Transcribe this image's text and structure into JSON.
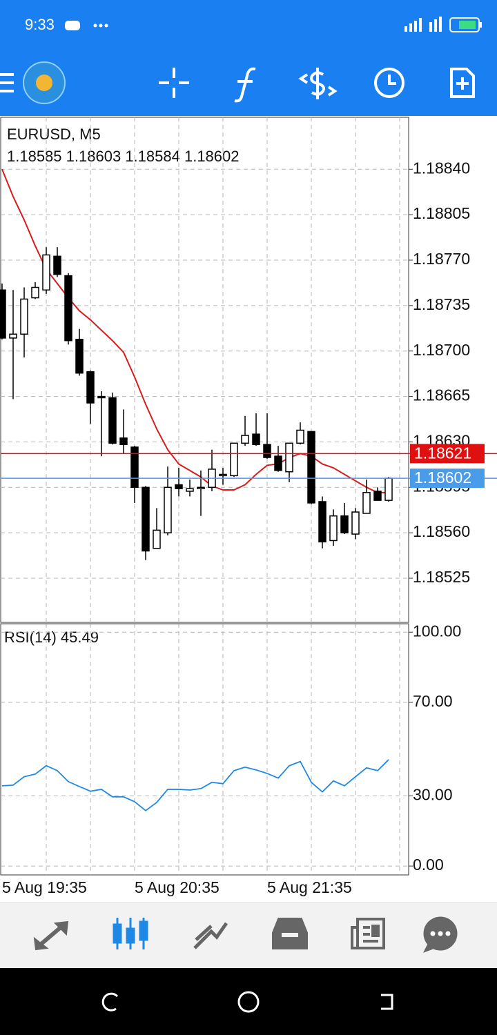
{
  "status_bar": {
    "time": "9:33"
  },
  "chart_data": [
    {
      "type": "candlestick",
      "title": "EURUSD, M5",
      "categories": [
        "5 Aug 19:35",
        null,
        null,
        null,
        null,
        null,
        null,
        null,
        null,
        null,
        null,
        null,
        "5 Aug 20:35",
        null,
        null,
        null,
        null,
        null,
        null,
        null,
        null,
        null,
        null,
        null,
        "5 Aug 21:35",
        null,
        null,
        null,
        null,
        null,
        null,
        null,
        null,
        null,
        null,
        null
      ],
      "open": [
        1.18747,
        1.1871,
        1.18713,
        1.18741,
        1.18747,
        1.18773,
        1.18758,
        1.18709,
        1.18684,
        1.18665,
        1.18664,
        1.18633,
        1.18626,
        1.18595,
        1.18548,
        1.1856,
        1.18597,
        1.18592,
        1.18594,
        1.18595,
        1.18604,
        1.18604,
        1.18629,
        1.18636,
        1.18628,
        1.18619,
        1.18607,
        1.18629,
        1.18638,
        1.18584,
        1.18554,
        1.18573,
        1.18559,
        1.18575,
        1.18592,
        1.18585
      ],
      "high": [
        1.18752,
        1.18747,
        1.18749,
        1.18753,
        1.1878,
        1.1878,
        1.1876,
        1.18717,
        1.18685,
        1.18669,
        1.18668,
        1.18655,
        1.18627,
        1.18596,
        1.18579,
        1.18611,
        1.1861,
        1.18601,
        1.18608,
        1.18624,
        1.1861,
        1.18629,
        1.1865,
        1.18652,
        1.18652,
        1.18627,
        1.18629,
        1.18645,
        1.18638,
        1.18588,
        1.18578,
        1.18583,
        1.18579,
        1.18601,
        1.18595,
        1.18603
      ],
      "low": [
        1.18709,
        1.18663,
        1.18695,
        1.1874,
        1.18744,
        1.18757,
        1.18705,
        1.18681,
        1.18644,
        1.18619,
        1.18628,
        1.18621,
        1.18583,
        1.18539,
        1.18548,
        1.18558,
        1.18588,
        1.18588,
        1.18573,
        1.18592,
        1.18597,
        1.18603,
        1.18627,
        1.18627,
        1.18617,
        1.18607,
        1.18599,
        1.18628,
        1.18582,
        1.18548,
        1.1855,
        1.18559,
        1.18555,
        1.18575,
        1.18585,
        1.18584
      ],
      "close": [
        1.1871,
        1.18713,
        1.1874,
        1.18749,
        1.18774,
        1.18759,
        1.18708,
        1.18683,
        1.1866,
        1.18664,
        1.18629,
        1.18628,
        1.18595,
        1.18546,
        1.18562,
        1.18595,
        1.18594,
        1.18594,
        1.18595,
        1.18609,
        1.18605,
        1.18629,
        1.18635,
        1.18628,
        1.18618,
        1.18608,
        1.18629,
        1.18639,
        1.18583,
        1.18553,
        1.18573,
        1.1856,
        1.18576,
        1.18591,
        1.18585,
        1.18602
      ],
      "lines": [
        {
          "color": "#d81b1b",
          "values": [
            1.1884,
            1.18819,
            1.18801,
            1.18781,
            1.18763,
            1.18752,
            1.18741,
            1.18731,
            1.18724,
            1.18716,
            1.18708,
            1.18699,
            1.1868,
            1.18659,
            1.1864,
            1.18624,
            1.18613,
            1.18608,
            1.18603,
            1.18596,
            1.18593,
            1.18593,
            1.18597,
            1.18605,
            1.18612,
            1.18613,
            1.18618,
            1.18621,
            1.18619,
            1.18613,
            1.1861,
            1.18605,
            1.186,
            1.18595,
            1.18591,
            1.18591
          ]
        }
      ],
      "levels": [
        {
          "value": 1.18621,
          "color": "#e01010"
        },
        {
          "value": 1.18602,
          "color": "#4a9be8"
        }
      ],
      "ylim": [
        1.18491,
        1.1888
      ],
      "yticks": [
        {
          "value": 1.1884,
          "label": "1.18840"
        },
        {
          "value": 1.18805,
          "label": "1.18805"
        },
        {
          "value": 1.1877,
          "label": "1.18770"
        },
        {
          "value": 1.18735,
          "label": "1.18735"
        },
        {
          "value": 1.187,
          "label": "1.18700"
        },
        {
          "value": 1.18665,
          "label": "1.18665"
        },
        {
          "value": 1.1863,
          "label": "1.18630"
        },
        {
          "value": 1.18595,
          "label": "1.18595"
        },
        {
          "value": 1.1856,
          "label": "1.18560"
        },
        {
          "value": 1.18525,
          "label": "1.18525"
        }
      ],
      "grid": true
    },
    {
      "type": "line",
      "title": "RSI(14)",
      "color": "#1e88e5",
      "values": [
        34.3,
        34.6,
        38.2,
        39.3,
        42.9,
        40.8,
        36.1,
        34.0,
        32.0,
        32.8,
        29.6,
        29.6,
        27.5,
        23.7,
        27.2,
        32.8,
        32.8,
        32.5,
        33.1,
        35.8,
        35.2,
        40.8,
        42.3,
        41.1,
        39.6,
        37.6,
        42.9,
        44.7,
        35.8,
        31.7,
        36.4,
        34.3,
        38.2,
        42.0,
        40.8,
        45.49
      ],
      "ylim": [
        -3.8,
        103.6
      ],
      "yticks": [
        {
          "value": 100,
          "label": "100.00"
        },
        {
          "value": 70,
          "label": "70.00"
        },
        {
          "value": 30,
          "label": "30.00"
        },
        {
          "value": 0,
          "label": "0.00"
        }
      ],
      "grid": true
    }
  ]
}
